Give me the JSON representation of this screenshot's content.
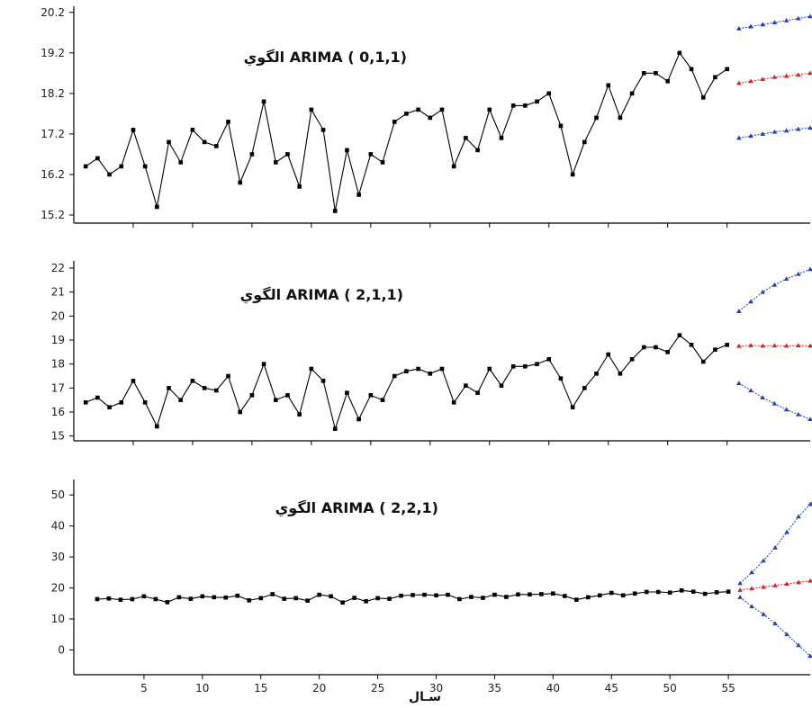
{
  "chart_data": [
    {
      "type": "line",
      "title": "الگوي ARIMA ( 0,1,1)",
      "xlim": [
        0,
        62
      ],
      "ylim": [
        15.0,
        20.35
      ],
      "yticks": [
        15.2,
        16.2,
        17.2,
        18.2,
        19.2,
        20.2
      ],
      "ytick_labels": [
        "15.2",
        "16.2",
        "17.2",
        "18.2",
        "19.2",
        "20.2"
      ],
      "xticks": [
        5,
        10,
        15,
        20,
        25,
        30,
        35,
        40,
        45,
        50,
        55
      ],
      "xtick_labels": [],
      "grid": false,
      "series": [
        {
          "color": "#000000",
          "marker": "square",
          "x_start": 1,
          "values": [
            16.4,
            16.6,
            16.2,
            16.4,
            17.3,
            16.4,
            15.4,
            17.0,
            16.5,
            17.3,
            17.0,
            16.9,
            17.5,
            16.0,
            16.7,
            18.0,
            16.5,
            16.7,
            15.9,
            17.8,
            17.3,
            15.3,
            16.8,
            15.7,
            16.7,
            16.5,
            17.5,
            17.7,
            17.8,
            17.6,
            17.8,
            16.4,
            17.1,
            16.8,
            17.8,
            17.1,
            17.9,
            17.9,
            18.0,
            18.2,
            17.4,
            16.2,
            17.0,
            17.6,
            18.4,
            17.6,
            18.2,
            18.7,
            18.7,
            18.5,
            19.2,
            18.8,
            18.1,
            18.6,
            18.8
          ]
        },
        {
          "color": "#1f3fbf",
          "marker": "triangle",
          "x_start": 56,
          "values": [
            19.8,
            19.85,
            19.9,
            19.95,
            20.0,
            20.05,
            20.1
          ]
        },
        {
          "color": "#d82020",
          "marker": "triangle",
          "x_start": 56,
          "values": [
            18.45,
            18.5,
            18.55,
            18.6,
            18.63,
            18.66,
            18.7
          ]
        },
        {
          "color": "#1f3fbf",
          "marker": "triangle",
          "x_start": 56,
          "values": [
            17.1,
            17.15,
            17.2,
            17.25,
            17.28,
            17.32,
            17.35
          ]
        }
      ]
    },
    {
      "type": "line",
      "title": "الگوي ARIMA ( 2,1,1)",
      "xlim": [
        0,
        62
      ],
      "ylim": [
        14.8,
        22.3
      ],
      "yticks": [
        15,
        16,
        17,
        18,
        19,
        20,
        21,
        22
      ],
      "ytick_labels": [
        "15",
        "16",
        "17",
        "18",
        "19",
        "20",
        "21",
        "22"
      ],
      "xticks": [
        5,
        10,
        15,
        20,
        25,
        30,
        35,
        40,
        45,
        50,
        55
      ],
      "xtick_labels": [],
      "grid": false,
      "series": [
        {
          "color": "#000000",
          "marker": "square",
          "x_start": 1,
          "values": [
            16.4,
            16.6,
            16.2,
            16.4,
            17.3,
            16.4,
            15.4,
            17.0,
            16.5,
            17.3,
            17.0,
            16.9,
            17.5,
            16.0,
            16.7,
            18.0,
            16.5,
            16.7,
            15.9,
            17.8,
            17.3,
            15.3,
            16.8,
            15.7,
            16.7,
            16.5,
            17.5,
            17.7,
            17.8,
            17.6,
            17.8,
            16.4,
            17.1,
            16.8,
            17.8,
            17.1,
            17.9,
            17.9,
            18.0,
            18.2,
            17.4,
            16.2,
            17.0,
            17.6,
            18.4,
            17.6,
            18.2,
            18.7,
            18.7,
            18.5,
            19.2,
            18.8,
            18.1,
            18.6,
            18.8
          ]
        },
        {
          "color": "#1f3fbf",
          "marker": "triangle",
          "x_start": 56,
          "values": [
            20.2,
            20.6,
            21.0,
            21.3,
            21.55,
            21.75,
            21.95,
            22.05,
            22.2
          ]
        },
        {
          "color": "#d82020",
          "marker": "triangle",
          "x_start": 56,
          "values": [
            18.75,
            18.78,
            18.76,
            18.77,
            18.76,
            18.77,
            18.76,
            18.76,
            18.76
          ]
        },
        {
          "color": "#1f3fbf",
          "marker": "triangle",
          "x_start": 56,
          "values": [
            17.2,
            16.9,
            16.6,
            16.35,
            16.1,
            15.9,
            15.7,
            15.5,
            15.3
          ]
        }
      ]
    },
    {
      "type": "line",
      "title": "الگوي ARIMA ( 2,2,1)",
      "xlabel": "سـال",
      "xlim": [
        -1,
        62
      ],
      "ylim": [
        -8,
        55
      ],
      "yticks": [
        0,
        10,
        20,
        30,
        40,
        50
      ],
      "ytick_labels": [
        "0",
        "10",
        "20",
        "30",
        "40",
        "50"
      ],
      "xticks": [
        5,
        10,
        15,
        20,
        25,
        30,
        35,
        40,
        45,
        50,
        55
      ],
      "xtick_labels": [
        "5",
        "10",
        "15",
        "20",
        "25",
        "30",
        "35",
        "40",
        "45",
        "50",
        "55"
      ],
      "grid": false,
      "series": [
        {
          "color": "#000000",
          "marker": "square",
          "x_start": 1,
          "values": [
            16.4,
            16.6,
            16.2,
            16.4,
            17.3,
            16.4,
            15.4,
            17.0,
            16.5,
            17.3,
            17.0,
            16.9,
            17.5,
            16.0,
            16.7,
            18.0,
            16.5,
            16.7,
            15.9,
            17.8,
            17.3,
            15.3,
            16.8,
            15.7,
            16.7,
            16.5,
            17.5,
            17.7,
            17.8,
            17.6,
            17.8,
            16.4,
            17.1,
            16.8,
            17.8,
            17.1,
            17.9,
            17.9,
            18.0,
            18.2,
            17.4,
            16.2,
            17.0,
            17.6,
            18.4,
            17.6,
            18.2,
            18.7,
            18.7,
            18.5,
            19.2,
            18.8,
            18.1,
            18.6,
            18.8
          ]
        },
        {
          "color": "#1f3fbf",
          "marker": "triangle",
          "x_start": 56,
          "values": [
            21.5,
            25.0,
            28.8,
            33.0,
            38.0,
            43.0,
            47.0,
            51.5
          ]
        },
        {
          "color": "#d82020",
          "marker": "triangle",
          "x_start": 56,
          "values": [
            19.3,
            19.8,
            20.3,
            20.8,
            21.3,
            21.8,
            22.3,
            23.0
          ]
        },
        {
          "color": "#1f3fbf",
          "marker": "triangle",
          "x_start": 56,
          "values": [
            17.0,
            14.0,
            11.5,
            8.5,
            5.0,
            1.5,
            -2.0,
            -5.5
          ]
        }
      ]
    }
  ]
}
